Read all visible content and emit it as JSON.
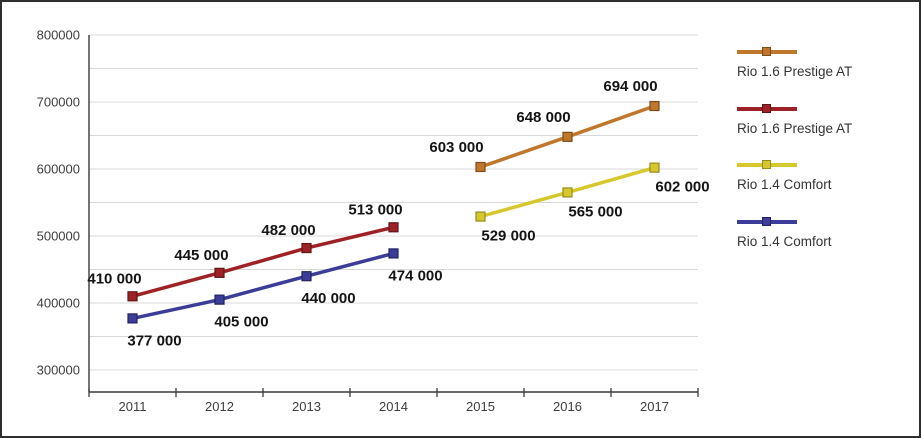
{
  "chart_data": {
    "type": "line",
    "x": [
      2011,
      2012,
      2013,
      2014,
      2015,
      2016,
      2017
    ],
    "x_labels": [
      "2011",
      "2012",
      "2013",
      "2014",
      "2015",
      "2016",
      "2017"
    ],
    "ylim": [
      300000,
      800000
    ],
    "y_ticks": [
      300000,
      400000,
      500000,
      600000,
      700000,
      800000
    ],
    "y_tick_labels": [
      "300000",
      "400000",
      "500000",
      "600000",
      "700000",
      "800000"
    ],
    "grid": "horizontal minor gridlines every 50000, light gray",
    "legend_position": "right",
    "series": [
      {
        "name": "Rio 1.6 Prestige AT",
        "color": "#C0762B",
        "x": [
          2015,
          2016,
          2017
        ],
        "values": [
          603000,
          648000,
          694000
        ],
        "labels": [
          "603 000",
          "648 000",
          "694 000"
        ]
      },
      {
        "name": "Rio 1.6 Prestige AT",
        "color": "#9E2126",
        "x": [
          2011,
          2012,
          2013,
          2014
        ],
        "values": [
          410000,
          445000,
          482000,
          513000
        ],
        "labels": [
          "410 000",
          "445 000",
          "482 000",
          "513 000"
        ]
      },
      {
        "name": "Rio 1.4 Comfort",
        "color": "#D6C82C",
        "x": [
          2015,
          2016,
          2017
        ],
        "values": [
          529000,
          565000,
          602000
        ],
        "labels": [
          "529 000",
          "565 000",
          "602 000"
        ]
      },
      {
        "name": "Rio 1.4 Comfort",
        "color": "#3C3C99",
        "x": [
          2011,
          2012,
          2013,
          2014
        ],
        "values": [
          377000,
          405000,
          440000,
          474000
        ],
        "labels": [
          "377 000",
          "405 000",
          "440 000",
          "474 000"
        ]
      }
    ],
    "legend": [
      {
        "label": "Rio 1.6 Prestige AT",
        "color": "#C0762B"
      },
      {
        "label": "Rio 1.6 Prestige AT",
        "color": "#9E2126"
      },
      {
        "label": "Rio 1.4 Comfort",
        "color": "#D6C82C"
      },
      {
        "label": "Rio 1.4 Comfort",
        "color": "#3C3C99"
      }
    ]
  }
}
